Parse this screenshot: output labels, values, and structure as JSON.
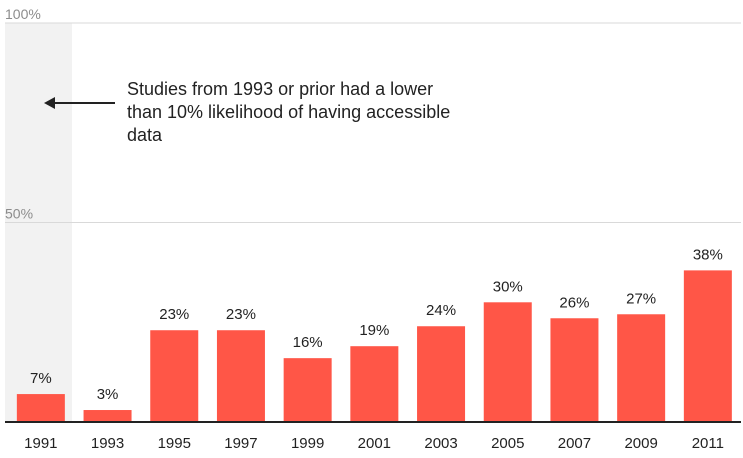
{
  "chart_data": {
    "type": "bar",
    "categories": [
      "1991",
      "1993",
      "1995",
      "1997",
      "1999",
      "2001",
      "2003",
      "2005",
      "2007",
      "2009",
      "2011"
    ],
    "values": [
      7,
      3,
      23,
      23,
      16,
      19,
      24,
      30,
      26,
      27,
      38
    ],
    "value_labels": [
      "7%",
      "3%",
      "23%",
      "23%",
      "16%",
      "19%",
      "24%",
      "30%",
      "26%",
      "27%",
      "38%"
    ],
    "title": "",
    "xlabel": "",
    "ylabel": "",
    "ylim": [
      0,
      100
    ],
    "yticks": [
      50,
      100
    ],
    "ytick_labels": [
      "50%",
      "100%"
    ],
    "grid": true,
    "bar_color": "#ff5647",
    "shaded_category": "1991",
    "annotation": {
      "lines": [
        "Studies from 1993 or prior had a lower",
        "than 10% likelihood of having accessible",
        "data"
      ],
      "arrow": "left"
    }
  }
}
